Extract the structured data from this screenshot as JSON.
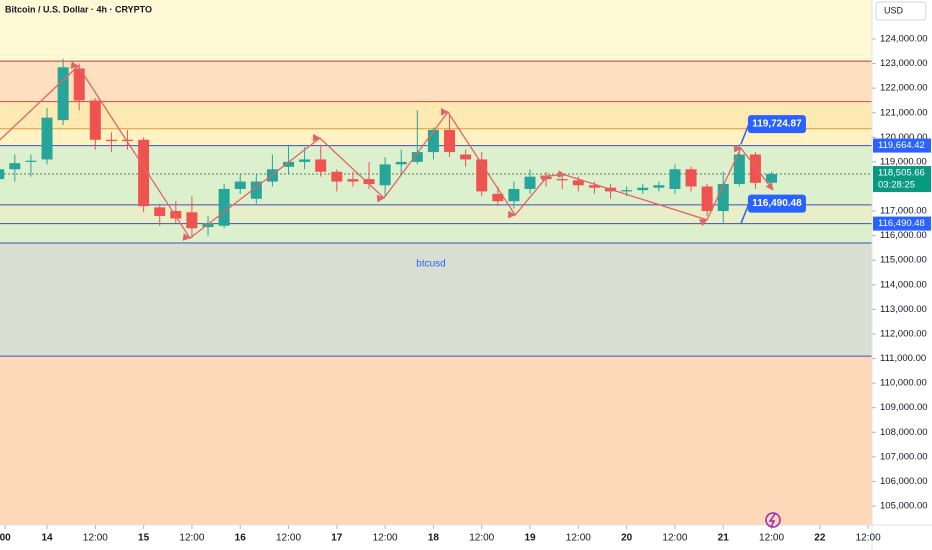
{
  "header": {
    "title": "Bitcoin / U.S. Dollar · 4h · CRYPTO",
    "currency": "USD"
  },
  "chart_data": {
    "type": "candlestick",
    "xlim": [
      0.08,
      54.24
    ],
    "ylim": [
      104228,
      125587
    ],
    "xticks": [
      {
        "value": 0.4,
        "label": "00"
      },
      {
        "value": 3,
        "label": "14"
      },
      {
        "value": 6,
        "label": "12:00"
      },
      {
        "value": 9,
        "label": "15"
      },
      {
        "value": 12,
        "label": "12:00"
      },
      {
        "value": 15,
        "label": "16"
      },
      {
        "value": 18,
        "label": "12:00"
      },
      {
        "value": 21,
        "label": "17"
      },
      {
        "value": 24,
        "label": "12:00"
      },
      {
        "value": 27,
        "label": "18"
      },
      {
        "value": 30,
        "label": "12:00"
      },
      {
        "value": 33,
        "label": "19"
      },
      {
        "value": 36,
        "label": "12:00"
      },
      {
        "value": 39,
        "label": "20"
      },
      {
        "value": 42,
        "label": "12:00"
      },
      {
        "value": 45,
        "label": "21"
      },
      {
        "value": 48,
        "label": "12:00"
      },
      {
        "value": 51,
        "label": "22"
      },
      {
        "value": 54,
        "label": "12:00"
      }
    ],
    "yticks": [
      {
        "value": 124000,
        "label": "124,000.00"
      },
      {
        "value": 123000,
        "label": "123,000.00"
      },
      {
        "value": 122000,
        "label": "122,000.00"
      },
      {
        "value": 121000,
        "label": "121,000.00"
      },
      {
        "value": 120000,
        "label": "120,000.00"
      },
      {
        "value": 119000,
        "label": "119,000.00"
      },
      {
        "value": 117000,
        "label": "117,000.00"
      },
      {
        "value": 116000,
        "label": "116,000.00"
      },
      {
        "value": 115000,
        "label": "115,000.00"
      },
      {
        "value": 114000,
        "label": "114,000.00"
      },
      {
        "value": 113000,
        "label": "113,000.00"
      },
      {
        "value": 112000,
        "label": "112,000.00"
      },
      {
        "value": 111000,
        "label": "111,000.00"
      },
      {
        "value": 110000,
        "label": "110,000.00"
      },
      {
        "value": 109000,
        "label": "109,000.00"
      },
      {
        "value": 108000,
        "label": "108,000.00"
      },
      {
        "value": 107000,
        "label": "107,000.00"
      },
      {
        "value": 106000,
        "label": "106,000.00"
      },
      {
        "value": 105000,
        "label": "105,000.00"
      }
    ],
    "up_color": "#26a69a",
    "down_color": "#ef5350",
    "background": "#fff8d4",
    "x": [
      0,
      1,
      2,
      3,
      4,
      5,
      6,
      7,
      8,
      9,
      10,
      11,
      12,
      13,
      14,
      15,
      16,
      17,
      18,
      19,
      20,
      21,
      22,
      23,
      24,
      25,
      26,
      27,
      28,
      29,
      30,
      31,
      32,
      33,
      34,
      35,
      36,
      37,
      38,
      39,
      40,
      41,
      42,
      43,
      44,
      45,
      46,
      47,
      48
    ],
    "open": [
      118300,
      118700,
      119000,
      119100,
      120700,
      122800,
      121500,
      119900,
      119900,
      119900,
      117150,
      117000,
      116950,
      116350,
      116400,
      117900,
      117500,
      118200,
      118800,
      119000,
      119100,
      118600,
      118300,
      118300,
      118050,
      118900,
      119000,
      119400,
      120300,
      119300,
      119100,
      117700,
      117400,
      117900,
      118400,
      118300,
      118250,
      118050,
      117950,
      117800,
      117850,
      117950,
      117900,
      118700,
      118000,
      117000,
      118100,
      119300,
      118150
    ],
    "high": [
      119000,
      119300,
      119300,
      121200,
      123200,
      123000,
      121600,
      120200,
      120300,
      120000,
      117300,
      117400,
      117600,
      116800,
      118100,
      118500,
      118500,
      119300,
      119700,
      119600,
      119700,
      118700,
      118600,
      119000,
      119200,
      119500,
      121100,
      120400,
      120900,
      119500,
      119400,
      118000,
      118200,
      118700,
      118600,
      118500,
      118400,
      118200,
      118100,
      118000,
      118100,
      118200,
      118900,
      118800,
      118100,
      118600,
      119724.87,
      119400,
      118600
    ],
    "low": [
      117900,
      118200,
      118400,
      118900,
      120500,
      121100,
      119500,
      119400,
      119500,
      116950,
      116400,
      116500,
      115900,
      116000,
      116300,
      117700,
      117300,
      118000,
      118500,
      118700,
      118400,
      117800,
      118000,
      117900,
      117600,
      118500,
      118900,
      119100,
      119200,
      118800,
      117600,
      117200,
      117100,
      117700,
      118000,
      117900,
      117800,
      117700,
      117500,
      117600,
      117700,
      117800,
      117700,
      117800,
      116800,
      116490.48,
      118000,
      117900,
      117950
    ],
    "close": [
      118700,
      118950,
      119050,
      120800,
      122850,
      121500,
      119900,
      119850,
      119850,
      117200,
      116800,
      116700,
      116300,
      116500,
      117900,
      118200,
      118200,
      118700,
      119000,
      119100,
      118600,
      118200,
      118200,
      118100,
      118900,
      119000,
      119400,
      120300,
      119400,
      119100,
      117800,
      117400,
      117900,
      118400,
      118300,
      118250,
      118050,
      117950,
      117800,
      117850,
      117950,
      118050,
      118700,
      118000,
      117000,
      118100,
      119300,
      118150,
      118505.66
    ],
    "zones": [
      {
        "from": 121450,
        "to": 123100,
        "color": "#fde0c0"
      },
      {
        "from": 120350,
        "to": 121450,
        "color": "#fee9b2"
      },
      {
        "from": 119664.42,
        "to": 120350,
        "color": "#fff2c2"
      },
      {
        "from": 117250,
        "to": 119664.42,
        "color": "#dcf0cd"
      },
      {
        "from": 116490.48,
        "to": 117250,
        "color": "#e8efc6"
      },
      {
        "from": 115700,
        "to": 116490.48,
        "color": "#dcf0cd"
      },
      {
        "from": 111100,
        "to": 115700,
        "color": "#d9ded2"
      },
      {
        "to": 111100,
        "color": "#fdd9ba"
      }
    ],
    "levels": [
      {
        "value": 123100,
        "color": "#b0453a"
      },
      {
        "value": 121450,
        "color": "#c0504d"
      },
      {
        "value": 120350,
        "color": "#d99a3a"
      },
      {
        "value": 119664.42,
        "color": "#3f51b5"
      },
      {
        "value": 117250,
        "color": "#3f51b5"
      },
      {
        "value": 116490.48,
        "color": "#3f51b5"
      },
      {
        "value": 115700,
        "color": "#3f51b5"
      },
      {
        "value": 111100,
        "color": "#3f51b5"
      }
    ],
    "zigzag": {
      "color": "#e06666",
      "x": [
        0.08,
        4.93,
        11.88,
        19.95,
        23.93,
        27.9,
        32.07,
        34.1,
        35.17,
        43.99,
        46.1,
        48.09
      ],
      "y": [
        119900,
        122900,
        115900,
        119970,
        117530,
        121030,
        116840,
        118430,
        118470,
        116640,
        119560,
        117860
      ]
    },
    "annotation": "btcusd",
    "price_labels": [
      {
        "value": 119664.42,
        "label": "119,664.42",
        "color": "#2962ff"
      },
      {
        "value": 116490.48,
        "label": "116,490.48",
        "color": "#2962ff"
      }
    ],
    "last": {
      "value": 118505.66,
      "label": "118,505.66",
      "countdown": "03:28:25",
      "color": "#089981"
    },
    "callouts": [
      {
        "x": 46.1,
        "value": 119724.87,
        "label": "119,724.87"
      },
      {
        "x": 46.1,
        "value": 116490.48,
        "label": "116,490.48"
      }
    ]
  }
}
